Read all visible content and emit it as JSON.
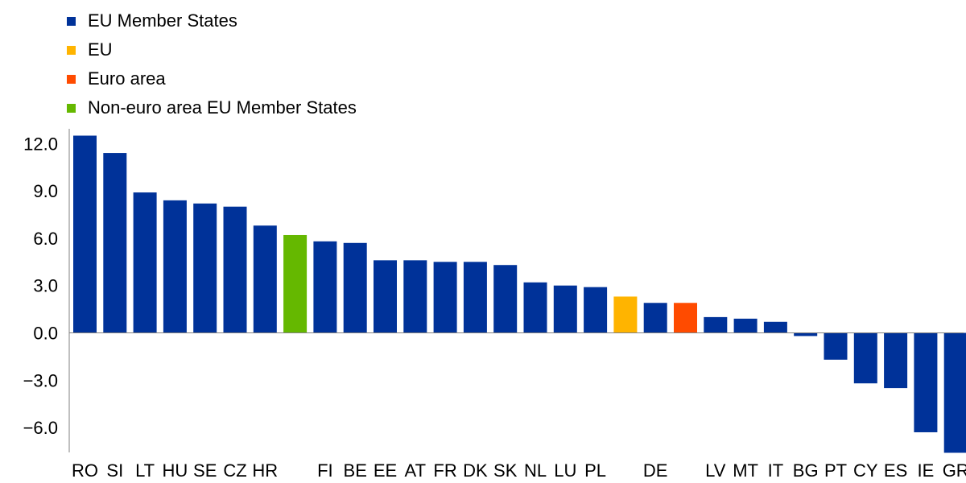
{
  "chart_data": {
    "type": "bar",
    "legend": [
      {
        "label": "EU Member States",
        "color": "#003299"
      },
      {
        "label": "EU",
        "color": "#FFB400"
      },
      {
        "label": "Euro area",
        "color": "#FF4B00"
      },
      {
        "label": "Non-euro area EU Member States",
        "color": "#65B800"
      }
    ],
    "categories": [
      "RO",
      "SI",
      "LT",
      "HU",
      "SE",
      "CZ",
      "HR",
      "",
      "FI",
      "BE",
      "EE",
      "AT",
      "FR",
      "DK",
      "SK",
      "NL",
      "LU",
      "PL",
      "",
      "DE",
      "",
      "LV",
      "MT",
      "IT",
      "BG",
      "PT",
      "CY",
      "ES",
      "IE",
      "GR"
    ],
    "values": [
      12.5,
      11.4,
      8.9,
      8.4,
      8.2,
      8.0,
      6.8,
      6.2,
      5.8,
      5.7,
      4.6,
      4.6,
      4.5,
      4.5,
      4.3,
      3.2,
      3.0,
      2.9,
      2.3,
      1.9,
      1.9,
      1.0,
      0.9,
      0.7,
      -0.2,
      -1.7,
      -3.2,
      -3.5,
      -6.3,
      -7.6
    ],
    "groups": [
      "EU Member States",
      "EU Member States",
      "EU Member States",
      "EU Member States",
      "EU Member States",
      "EU Member States",
      "EU Member States",
      "Non-euro area EU Member States",
      "EU Member States",
      "EU Member States",
      "EU Member States",
      "EU Member States",
      "EU Member States",
      "EU Member States",
      "EU Member States",
      "EU Member States",
      "EU Member States",
      "EU Member States",
      "EU",
      "EU Member States",
      "Euro area",
      "EU Member States",
      "EU Member States",
      "EU Member States",
      "EU Member States",
      "EU Member States",
      "EU Member States",
      "EU Member States",
      "EU Member States",
      "EU Member States"
    ],
    "yticks": [
      "12.0",
      "9.0",
      "6.0",
      "3.0",
      "0.0",
      "-3.0",
      "-6.0"
    ],
    "ylim": [
      -7.6,
      12.5
    ],
    "grid": false,
    "legend_position": "top-left"
  }
}
